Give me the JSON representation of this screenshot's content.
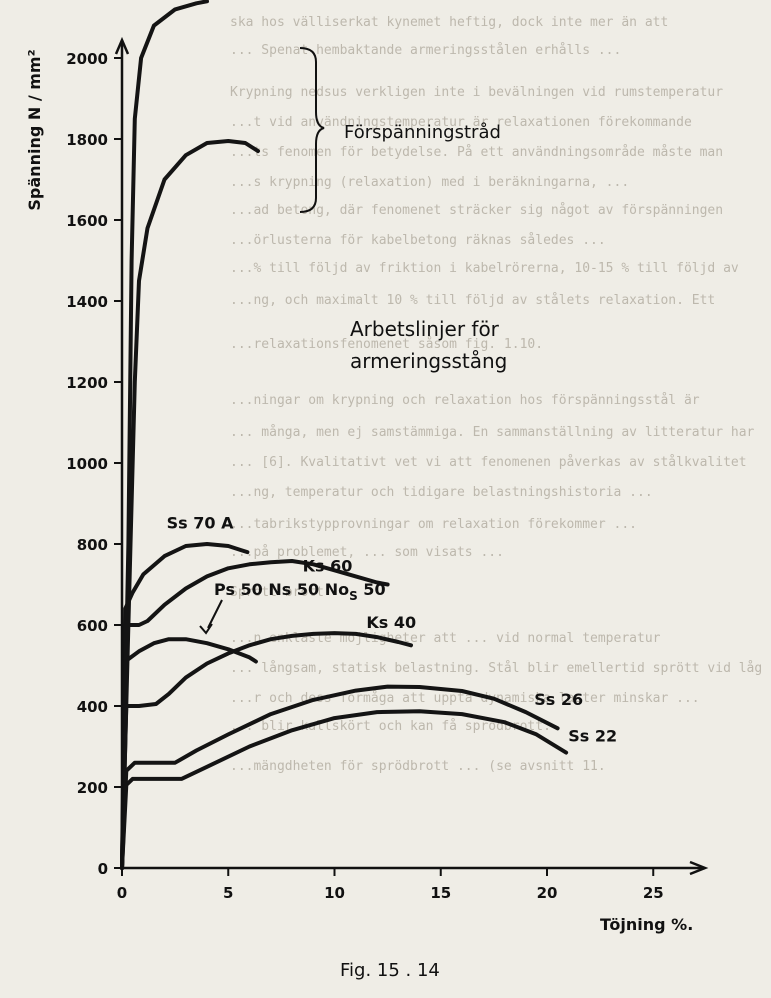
{
  "figure": {
    "caption": "Fig. 15 . 14"
  },
  "page_background": {
    "lines": [
      "ska hos välliserkat kynemet heftig, dock inte mer än att",
      "... Spenat hembaktande armeringsstålen erhålls ...",
      "Krypning nedsus verkligen inte i bevälningen vid rumstemperatur",
      "...t vid användningstemperatur är relaxationen förekommande",
      "...ts fenomen för betydelse. På ett användningsområde måste man",
      "...s krypning (relaxation) med i beräkningarna, ...",
      "...ad betong, där fenomenet sträcker sig något av förspänningen",
      "...örlusterna för kabelbetong räknas således ...",
      "...% till följd av friktion i kabelrörerna, 10-15 % till följd av",
      "...ng, och maximalt 10 % till följd av stålets relaxation. Ett",
      "...relaxationsfenomenet såsom fig. 1.10.",
      "...ningar om krypning och relaxation hos förspänningsstål är",
      "... många, men ej samstämmiga. En sammanställning av litteratur har",
      "... [6]. Kvalitativt vet vi att fenomenen påverkas av stålkvalitet",
      "...ng, temperatur och tidigare belastningshistoria ...",
      "...tabrikstypprovningar om relaxation förekommer ...",
      "...på problemet, ... som visats ...",
      "Sprött brott",
      "...n enklaste möjligheter att ... vid normal temperatur",
      "... långsam, statisk belastning. Stål blir emellertid sprött vid låg",
      "...r och dess förmåga att uppta dynamiska laster minskar ...",
      "... blir kallskört och kan få sprödbrott.",
      "...mängdheten för sprödbrott ... (se avsnitt 11."
    ]
  },
  "chart_data": {
    "type": "line",
    "title": "",
    "xlabel": "Töjning %.",
    "ylabel": "Spänning N / mm²",
    "xlim": [
      0,
      28
    ],
    "ylim": [
      0,
      2200
    ],
    "x_ticks": [
      0,
      5,
      10,
      15,
      20,
      25
    ],
    "y_ticks": [
      0,
      200,
      400,
      600,
      800,
      1000,
      1200,
      1400,
      1600,
      1800,
      2000
    ],
    "grid": false,
    "legend": "none",
    "annotations": {
      "prestress_wire": "Förspänningstråd",
      "title_line1": "Arbetslinjer för",
      "title_line2": "armeringsstång",
      "ps_group": "Ps 50  Ns 50  No",
      "ps_group_sub": "S",
      "ps_group_tail": " 50"
    },
    "series": [
      {
        "name": "",
        "points": [
          [
            0,
            0
          ],
          [
            0.3,
            800
          ],
          [
            0.45,
            1500
          ],
          [
            0.6,
            1850
          ],
          [
            0.9,
            2000
          ],
          [
            1.5,
            2080
          ],
          [
            2.5,
            2120
          ],
          [
            3.5,
            2135
          ],
          [
            4.0,
            2140
          ]
        ]
      },
      {
        "name": "",
        "points": [
          [
            0,
            0
          ],
          [
            0.4,
            800
          ],
          [
            0.6,
            1200
          ],
          [
            0.8,
            1450
          ],
          [
            1.2,
            1580
          ],
          [
            2.0,
            1700
          ],
          [
            3.0,
            1760
          ],
          [
            4.0,
            1790
          ],
          [
            5.0,
            1795
          ],
          [
            5.8,
            1790
          ],
          [
            6.4,
            1770
          ]
        ]
      },
      {
        "name": "Ss 70 A",
        "label_at": [
          2.1,
          838
        ],
        "points": [
          [
            0,
            0
          ],
          [
            0.15,
            640
          ],
          [
            0.5,
            680
          ],
          [
            1.0,
            725
          ],
          [
            2.0,
            770
          ],
          [
            3.0,
            795
          ],
          [
            4.0,
            800
          ],
          [
            5.0,
            795
          ],
          [
            5.6,
            785
          ],
          [
            5.9,
            780
          ]
        ]
      },
      {
        "name": "Ks 60",
        "label_at": [
          8.5,
          732
        ],
        "points": [
          [
            0,
            0
          ],
          [
            0.2,
            600
          ],
          [
            0.8,
            600
          ],
          [
            1.2,
            610
          ],
          [
            2.0,
            650
          ],
          [
            3.0,
            690
          ],
          [
            4.0,
            720
          ],
          [
            5.0,
            740
          ],
          [
            6.0,
            750
          ],
          [
            7.0,
            755
          ],
          [
            8.0,
            758
          ],
          [
            9.0,
            750
          ],
          [
            10.0,
            735
          ],
          [
            11.0,
            720
          ],
          [
            12.0,
            705
          ],
          [
            12.5,
            700
          ]
        ]
      },
      {
        "name": "",
        "points": [
          [
            0,
            0
          ],
          [
            0.15,
            510
          ],
          [
            0.8,
            535
          ],
          [
            1.5,
            555
          ],
          [
            2.2,
            565
          ],
          [
            3.0,
            565
          ],
          [
            4.0,
            555
          ],
          [
            5.0,
            540
          ],
          [
            6.0,
            520
          ],
          [
            6.3,
            510
          ]
        ]
      },
      {
        "name": "Ks 40",
        "label_at": [
          11.5,
          592
        ],
        "points": [
          [
            0,
            0
          ],
          [
            0.2,
            400
          ],
          [
            0.8,
            400
          ],
          [
            1.6,
            405
          ],
          [
            2.2,
            430
          ],
          [
            3.0,
            470
          ],
          [
            4.0,
            505
          ],
          [
            5.0,
            530
          ],
          [
            6.0,
            550
          ],
          [
            7.0,
            565
          ],
          [
            8.0,
            573
          ],
          [
            9.0,
            578
          ],
          [
            10.0,
            580
          ],
          [
            11.0,
            578
          ],
          [
            12.0,
            570
          ],
          [
            13.0,
            558
          ],
          [
            13.6,
            550
          ]
        ]
      },
      {
        "name": "Ss 26",
        "label_at": [
          19.4,
          402
        ],
        "points": [
          [
            0,
            0
          ],
          [
            0.2,
            240
          ],
          [
            0.6,
            260
          ],
          [
            2.5,
            260
          ],
          [
            3.5,
            290
          ],
          [
            5.0,
            330
          ],
          [
            7.0,
            380
          ],
          [
            9.0,
            415
          ],
          [
            11.0,
            438
          ],
          [
            12.5,
            448
          ],
          [
            14.0,
            447
          ],
          [
            16.0,
            437
          ],
          [
            17.5,
            418
          ],
          [
            19.0,
            385
          ],
          [
            20.5,
            345
          ]
        ]
      },
      {
        "name": "Ss 22",
        "label_at": [
          21.0,
          312
        ],
        "points": [
          [
            0,
            0
          ],
          [
            0.2,
            205
          ],
          [
            0.5,
            220
          ],
          [
            2.8,
            220
          ],
          [
            4.0,
            250
          ],
          [
            6.0,
            300
          ],
          [
            8.0,
            340
          ],
          [
            10.0,
            370
          ],
          [
            12.0,
            385
          ],
          [
            14.0,
            387
          ],
          [
            16.0,
            380
          ],
          [
            18.0,
            360
          ],
          [
            19.5,
            330
          ],
          [
            20.9,
            285
          ]
        ]
      }
    ]
  }
}
